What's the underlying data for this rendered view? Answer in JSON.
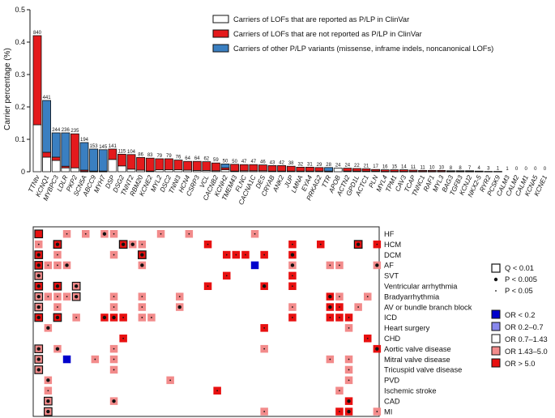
{
  "chart_data": [
    {
      "type": "bar",
      "stacked": true,
      "ylabel": "Carrier percentage (%)",
      "ylim": [
        0,
        0.5
      ],
      "yticks": [
        "0",
        "0.1",
        "0.2",
        "0.3",
        "0.4",
        "0.5"
      ],
      "yticks_num": [
        0,
        0.1,
        0.2,
        0.3,
        0.4,
        0.5
      ],
      "legend": [
        {
          "label": "Carriers of LOFs that are reported as P/LP in ClinVar",
          "color": "#ffffff"
        },
        {
          "label": "Carriers of LOFs that are not reported as P/LP in ClinVar",
          "color": "#e41a1c"
        },
        {
          "label": "Carriers of other P/LP variants (missense, inframe indels, noncanonical LOFs)",
          "color": "#3a7fc1"
        }
      ],
      "categories": [
        "TTNtv",
        "KCNQ1",
        "MYBPC3",
        "LDLR",
        "PKP2",
        "SCN5A",
        "ABCC9",
        "MYH7",
        "DSP",
        "DSG2",
        "TNNT2",
        "RBM20",
        "KCNE2",
        "MYL2",
        "DSC2",
        "TNNI3",
        "HCN4",
        "CSRP3",
        "VCL",
        "CACNB2",
        "KCNH2",
        "TMEM43",
        "FLNC",
        "CACNA1C",
        "DES",
        "CRYAB",
        "ANK2",
        "JUP",
        "LMNA",
        "EYA4",
        "PRKAG2",
        "TTR",
        "APOB",
        "ACTN2",
        "GPD1L",
        "ACTC1",
        "PLN",
        "MYL4",
        "TPM1",
        "CAV3",
        "TCAP",
        "TNNC1",
        "RAF1",
        "MYL3",
        "BAG3",
        "TGFB3",
        "KCNJ2",
        "NKX2-5",
        "RYR2",
        "PCSK9",
        "CALM3",
        "CALM2",
        "CALM1",
        "KCNA5",
        "KCNE1"
      ],
      "counts": [
        "840",
        "441",
        "244",
        "236",
        "235",
        "194",
        "153",
        "145",
        "141",
        "115",
        "104",
        "86",
        "83",
        "79",
        "79",
        "76",
        "64",
        "64",
        "62",
        "59",
        "50",
        "50",
        "47",
        "47",
        "46",
        "43",
        "42",
        "38",
        "32",
        "31",
        "29",
        "28",
        "24",
        "24",
        "22",
        "21",
        "17",
        "16",
        "15",
        "14",
        "11",
        "11",
        "10",
        "10",
        "8",
        "8",
        "7",
        "4",
        "3",
        "1",
        "1",
        "0",
        "0",
        "0",
        "0"
      ],
      "series": [
        {
          "name": "Carriers of LOFs that are reported as P/LP in ClinVar",
          "values": [
            0.145,
            0.045,
            0.035,
            0.012,
            0.012,
            0.001,
            0.001,
            0.001,
            0.038,
            0.018,
            0.008,
            0.005,
            0.002,
            0.006,
            0.006,
            0.006,
            0.005,
            0.004,
            0.004,
            0.003,
            0.006,
            0.002,
            0.003,
            0.003,
            0.003,
            0.002,
            0.002,
            0.002,
            0.002,
            0.002,
            0.002,
            0.001,
            0.011,
            0.002,
            0.002,
            0.002,
            0.002,
            0.001,
            0.001,
            0.001,
            0.001,
            0.001,
            0.001,
            0.001,
            0.001,
            0.001,
            0.001,
            0.001,
            0.001,
            0.001,
            0,
            0,
            0,
            0,
            0
          ]
        },
        {
          "name": "Carriers of LOFs that are not reported as P/LP in ClinVar",
          "values": [
            0.275,
            0.015,
            0.01,
            0.005,
            0.105,
            0.004,
            0.001,
            0.001,
            0.032,
            0.036,
            0.045,
            0.039,
            0.04,
            0.034,
            0.034,
            0.03,
            0.027,
            0.028,
            0.027,
            0.024,
            0.006,
            0.021,
            0.019,
            0.019,
            0.018,
            0.017,
            0.017,
            0.015,
            0.012,
            0.012,
            0.011,
            0.001,
            0.0,
            0.009,
            0.008,
            0.007,
            0.005,
            0.005,
            0.005,
            0.005,
            0.004,
            0.003,
            0.003,
            0.003,
            0.002,
            0.002,
            0.002,
            0.001,
            0.0,
            0,
            0,
            0,
            0,
            0,
            0
          ]
        },
        {
          "name": "Carriers of other P/LP variants (missense, inframe indels, noncanonical LOFs)",
          "values": [
            0.0,
            0.16,
            0.075,
            0.103,
            0.0,
            0.085,
            0.068,
            0.066,
            0.0,
            0.0,
            0.0,
            0.0,
            0.0,
            0.0,
            0.0,
            0.0,
            0.0,
            0.0,
            0.0,
            0.0,
            0.012,
            0.0,
            0.0,
            0.0,
            0.0,
            0.0,
            0.0,
            0.0,
            0.0,
            0.0,
            0.0,
            0.011,
            0.0,
            0.0,
            0.0,
            0.0,
            0.0,
            0.0,
            0.0,
            0.0,
            0.0,
            0.0,
            0.0,
            0.0,
            0.0,
            0.0,
            0.0,
            0.0,
            0.0,
            0.0,
            0,
            0,
            0,
            0,
            0
          ]
        }
      ]
    },
    {
      "type": "heatmap",
      "rows": [
        "HF",
        "HCM",
        "DCM",
        "AF",
        "SVT",
        "Ventricular arrhythmia",
        "Bradyarrhythmia",
        "AV or bundle branch block",
        "ICD",
        "Heart surgery",
        "CHD",
        "Aortic valve disease",
        "Mitral valve disease",
        "Tricuspid valve disease",
        "PVD",
        "Ischemic stroke",
        "CAD",
        "MI"
      ],
      "columns_follow": "bar chart categories",
      "color_legend": [
        {
          "label": "OR < 0.2",
          "color": "#0000cc"
        },
        {
          "label": "OR 0.2–0.7",
          "color": "#8888ee"
        },
        {
          "label": "OR 0.7–1.43",
          "color": "#ffffff"
        },
        {
          "label": "OR 1.43–5.0",
          "color": "#f28b8b"
        },
        {
          "label": "OR > 5.0",
          "color": "#e81010"
        }
      ],
      "mark_legend": [
        {
          "symbol": "square",
          "label": "Q < 0.01"
        },
        {
          "symbol": "big-dot",
          "label": "P < 0.005"
        },
        {
          "symbol": "small-dot",
          "label": "P < 0.05"
        }
      ],
      "cells": [
        {
          "r": 0,
          "c": 0,
          "cat": 4,
          "m": "b"
        },
        {
          "r": 0,
          "c": 0,
          "cat": 4,
          "m": "q"
        },
        {
          "r": 0,
          "c": 3,
          "cat": 3,
          "m": "s"
        },
        {
          "r": 0,
          "c": 5,
          "cat": 3,
          "m": "s"
        },
        {
          "r": 0,
          "c": 7,
          "cat": 3,
          "m": "b"
        },
        {
          "r": 0,
          "c": 8,
          "cat": 3,
          "m": "s"
        },
        {
          "r": 0,
          "c": 13,
          "cat": 3,
          "m": "s"
        },
        {
          "r": 0,
          "c": 16,
          "cat": 3,
          "m": "s"
        },
        {
          "r": 0,
          "c": 23,
          "cat": 3,
          "m": "s"
        },
        {
          "r": 1,
          "c": 0,
          "cat": 3,
          "m": "s"
        },
        {
          "r": 1,
          "c": 2,
          "cat": 4,
          "m": "bq"
        },
        {
          "r": 1,
          "c": 9,
          "cat": 4,
          "m": "bq"
        },
        {
          "r": 1,
          "c": 10,
          "cat": 3,
          "m": "b"
        },
        {
          "r": 1,
          "c": 11,
          "cat": 3,
          "m": "s"
        },
        {
          "r": 1,
          "c": 18,
          "cat": 4,
          "m": "s"
        },
        {
          "r": 1,
          "c": 27,
          "cat": 4,
          "m": "s"
        },
        {
          "r": 1,
          "c": 30,
          "cat": 4,
          "m": "s"
        },
        {
          "r": 1,
          "c": 34,
          "cat": 4,
          "m": "bq"
        },
        {
          "r": 1,
          "c": 36,
          "cat": 4,
          "m": "s"
        },
        {
          "r": 2,
          "c": 0,
          "cat": 4,
          "m": "bq"
        },
        {
          "r": 2,
          "c": 2,
          "cat": 3,
          "m": "s"
        },
        {
          "r": 2,
          "c": 8,
          "cat": 3,
          "m": "s"
        },
        {
          "r": 2,
          "c": 11,
          "cat": 4,
          "m": "bq"
        },
        {
          "r": 2,
          "c": 20,
          "cat": 4,
          "m": "s"
        },
        {
          "r": 2,
          "c": 21,
          "cat": 4,
          "m": "s"
        },
        {
          "r": 2,
          "c": 22,
          "cat": 4,
          "m": "s"
        },
        {
          "r": 2,
          "c": 24,
          "cat": 4,
          "m": "s"
        },
        {
          "r": 2,
          "c": 27,
          "cat": 4,
          "m": "b"
        },
        {
          "r": 3,
          "c": 0,
          "cat": 4,
          "m": "bq"
        },
        {
          "r": 3,
          "c": 1,
          "cat": 3,
          "m": "s"
        },
        {
          "r": 3,
          "c": 2,
          "cat": 3,
          "m": "s"
        },
        {
          "r": 3,
          "c": 3,
          "cat": 3,
          "m": "b"
        },
        {
          "r": 3,
          "c": 11,
          "cat": 3,
          "m": "b"
        },
        {
          "r": 3,
          "c": 23,
          "cat": 0,
          "m": ""
        },
        {
          "r": 3,
          "c": 27,
          "cat": 3,
          "m": "b"
        },
        {
          "r": 3,
          "c": 31,
          "cat": 3,
          "m": "s"
        },
        {
          "r": 3,
          "c": 32,
          "cat": 3,
          "m": "s"
        },
        {
          "r": 3,
          "c": 36,
          "cat": 3,
          "m": "b"
        },
        {
          "r": 4,
          "c": 0,
          "cat": 3,
          "m": "bq"
        },
        {
          "r": 4,
          "c": 20,
          "cat": 4,
          "m": "s"
        },
        {
          "r": 4,
          "c": 27,
          "cat": 4,
          "m": "s"
        },
        {
          "r": 5,
          "c": 0,
          "cat": 4,
          "m": "bq"
        },
        {
          "r": 5,
          "c": 2,
          "cat": 4,
          "m": "bq"
        },
        {
          "r": 5,
          "c": 4,
          "cat": 3,
          "m": "bq"
        },
        {
          "r": 5,
          "c": 18,
          "cat": 4,
          "m": "s"
        },
        {
          "r": 5,
          "c": 24,
          "cat": 4,
          "m": "b"
        },
        {
          "r": 5,
          "c": 27,
          "cat": 4,
          "m": "s"
        },
        {
          "r": 6,
          "c": 0,
          "cat": 3,
          "m": "bq"
        },
        {
          "r": 6,
          "c": 1,
          "cat": 3,
          "m": "s"
        },
        {
          "r": 6,
          "c": 2,
          "cat": 3,
          "m": "s"
        },
        {
          "r": 6,
          "c": 3,
          "cat": 3,
          "m": "s"
        },
        {
          "r": 6,
          "c": 4,
          "cat": 3,
          "m": "bq"
        },
        {
          "r": 6,
          "c": 8,
          "cat": 3,
          "m": "s"
        },
        {
          "r": 6,
          "c": 11,
          "cat": 3,
          "m": "s"
        },
        {
          "r": 6,
          "c": 15,
          "cat": 3,
          "m": "s"
        },
        {
          "r": 6,
          "c": 31,
          "cat": 4,
          "m": "b"
        },
        {
          "r": 6,
          "c": 32,
          "cat": 3,
          "m": "s"
        },
        {
          "r": 6,
          "c": 35,
          "cat": 3,
          "m": "s"
        },
        {
          "r": 7,
          "c": 0,
          "cat": 3,
          "m": "bq"
        },
        {
          "r": 7,
          "c": 2,
          "cat": 3,
          "m": "s"
        },
        {
          "r": 7,
          "c": 8,
          "cat": 3,
          "m": "s"
        },
        {
          "r": 7,
          "c": 11,
          "cat": 3,
          "m": "s"
        },
        {
          "r": 7,
          "c": 15,
          "cat": 3,
          "m": "b"
        },
        {
          "r": 7,
          "c": 27,
          "cat": 3,
          "m": "s"
        },
        {
          "r": 7,
          "c": 31,
          "cat": 4,
          "m": "b"
        },
        {
          "r": 7,
          "c": 32,
          "cat": 4,
          "m": "s"
        },
        {
          "r": 7,
          "c": 34,
          "cat": 3,
          "m": "s"
        },
        {
          "r": 8,
          "c": 0,
          "cat": 4,
          "m": "bq"
        },
        {
          "r": 8,
          "c": 2,
          "cat": 4,
          "m": "bq"
        },
        {
          "r": 8,
          "c": 4,
          "cat": 3,
          "m": "s"
        },
        {
          "r": 8,
          "c": 7,
          "cat": 4,
          "m": "b"
        },
        {
          "r": 8,
          "c": 8,
          "cat": 4,
          "m": "b"
        },
        {
          "r": 8,
          "c": 9,
          "cat": 4,
          "m": "s"
        },
        {
          "r": 8,
          "c": 11,
          "cat": 3,
          "m": "s"
        },
        {
          "r": 8,
          "c": 12,
          "cat": 3,
          "m": "s"
        },
        {
          "r": 8,
          "c": 27,
          "cat": 4,
          "m": "s"
        },
        {
          "r": 8,
          "c": 31,
          "cat": 4,
          "m": "s"
        },
        {
          "r": 8,
          "c": 32,
          "cat": 4,
          "m": "s"
        },
        {
          "r": 8,
          "c": 33,
          "cat": 4,
          "m": "s"
        },
        {
          "r": 9,
          "c": 1,
          "cat": 3,
          "m": "b"
        },
        {
          "r": 9,
          "c": 24,
          "cat": 4,
          "m": "s"
        },
        {
          "r": 9,
          "c": 33,
          "cat": 3,
          "m": "s"
        },
        {
          "r": 10,
          "c": 9,
          "cat": 4,
          "m": "s"
        },
        {
          "r": 10,
          "c": 35,
          "cat": 4,
          "m": "s"
        },
        {
          "r": 11,
          "c": 0,
          "cat": 3,
          "m": "bq"
        },
        {
          "r": 11,
          "c": 2,
          "cat": 3,
          "m": "b"
        },
        {
          "r": 11,
          "c": 8,
          "cat": 3,
          "m": "s"
        },
        {
          "r": 11,
          "c": 24,
          "cat": 3,
          "m": "s"
        },
        {
          "r": 11,
          "c": 36,
          "cat": 4,
          "m": "b"
        },
        {
          "r": 12,
          "c": 0,
          "cat": 3,
          "m": "bq"
        },
        {
          "r": 12,
          "c": 3,
          "cat": 0,
          "m": ""
        },
        {
          "r": 12,
          "c": 6,
          "cat": 3,
          "m": "s"
        },
        {
          "r": 12,
          "c": 8,
          "cat": 3,
          "m": "s"
        },
        {
          "r": 12,
          "c": 31,
          "cat": 3,
          "m": "s"
        },
        {
          "r": 12,
          "c": 33,
          "cat": 3,
          "m": "s"
        },
        {
          "r": 13,
          "c": 0,
          "cat": 3,
          "m": "bq"
        },
        {
          "r": 13,
          "c": 8,
          "cat": 3,
          "m": "s"
        },
        {
          "r": 13,
          "c": 33,
          "cat": 3,
          "m": "s"
        },
        {
          "r": 14,
          "c": 1,
          "cat": 3,
          "m": "b"
        },
        {
          "r": 14,
          "c": 14,
          "cat": 3,
          "m": "s"
        },
        {
          "r": 14,
          "c": 33,
          "cat": 3,
          "m": "s"
        },
        {
          "r": 15,
          "c": 1,
          "cat": 3,
          "m": "s"
        },
        {
          "r": 15,
          "c": 19,
          "cat": 4,
          "m": "s"
        },
        {
          "r": 15,
          "c": 32,
          "cat": 3,
          "m": "s"
        },
        {
          "r": 16,
          "c": 1,
          "cat": 3,
          "m": "bq"
        },
        {
          "r": 16,
          "c": 8,
          "cat": 3,
          "m": "b"
        },
        {
          "r": 16,
          "c": 33,
          "cat": 4,
          "m": "b"
        },
        {
          "r": 17,
          "c": 1,
          "cat": 3,
          "m": "bq"
        },
        {
          "r": 17,
          "c": 24,
          "cat": 3,
          "m": "s"
        },
        {
          "r": 17,
          "c": 32,
          "cat": 4,
          "m": "s"
        },
        {
          "r": 17,
          "c": 33,
          "cat": 4,
          "m": "b"
        },
        {
          "r": 17,
          "c": 36,
          "cat": 3,
          "m": "s"
        }
      ]
    }
  ]
}
